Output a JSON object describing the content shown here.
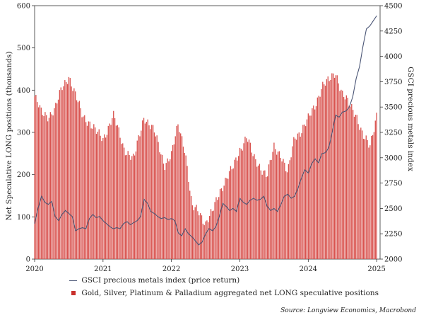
{
  "chart_data": {
    "type": "bar+line",
    "title": "",
    "xlabel": "",
    "x_ticks": [
      "2020",
      "2021",
      "2022",
      "2023",
      "2024",
      "2025"
    ],
    "x_range": [
      2020.0,
      2025.05
    ],
    "y_left": {
      "label": "Net Speculative LONG positions (thousands)",
      "ticks": [
        "0",
        "100",
        "200",
        "300",
        "400",
        "500",
        "600"
      ],
      "range": [
        0,
        600
      ]
    },
    "y_right": {
      "label": "GSCI precious metals index",
      "ticks": [
        "2000",
        "2250",
        "2500",
        "2750",
        "3000",
        "3250",
        "3500",
        "3750",
        "4000",
        "4250",
        "4500"
      ],
      "range": [
        2000,
        4500
      ]
    },
    "bars": {
      "name": "Gold, Silver, Platinum & Palladium aggregated net LONG speculative positions",
      "color": "#d9534f",
      "axis": "left",
      "x": [
        2020.0,
        2020.1,
        2020.2,
        2020.3,
        2020.4,
        2020.5,
        2020.6,
        2020.7,
        2020.8,
        2020.9,
        2021.0,
        2021.15,
        2021.3,
        2021.45,
        2021.6,
        2021.75,
        2021.9,
        2022.0,
        2022.1,
        2022.2,
        2022.3,
        2022.4,
        2022.5,
        2022.6,
        2022.7,
        2022.8,
        2022.9,
        2023.0,
        2023.1,
        2023.2,
        2023.3,
        2023.4,
        2023.5,
        2023.6,
        2023.7,
        2023.8,
        2023.9,
        2024.0,
        2024.1,
        2024.2,
        2024.3,
        2024.4,
        2024.5,
        2024.6,
        2024.7,
        2024.8,
        2024.9,
        2025.0
      ],
      "values": [
        385,
        345,
        340,
        355,
        405,
        435,
        385,
        340,
        325,
        300,
        285,
        340,
        265,
        235,
        340,
        300,
        225,
        245,
        320,
        260,
        120,
        115,
        85,
        110,
        160,
        190,
        215,
        260,
        290,
        240,
        220,
        195,
        265,
        250,
        200,
        290,
        305,
        330,
        365,
        410,
        420,
        445,
        390,
        365,
        345,
        290,
        265,
        345
      ]
    },
    "line": {
      "name": "GSCI precious metals index (price return)",
      "color": "#4a5575",
      "axis": "right",
      "x": [
        2020.0,
        2020.05,
        2020.1,
        2020.15,
        2020.2,
        2020.25,
        2020.3,
        2020.35,
        2020.4,
        2020.45,
        2020.5,
        2020.55,
        2020.6,
        2020.65,
        2020.7,
        2020.75,
        2020.8,
        2020.85,
        2020.9,
        2020.95,
        2021.0,
        2021.05,
        2021.1,
        2021.15,
        2021.2,
        2021.25,
        2021.3,
        2021.35,
        2021.4,
        2021.45,
        2021.5,
        2021.55,
        2021.6,
        2021.65,
        2021.7,
        2021.75,
        2021.8,
        2021.85,
        2021.9,
        2021.95,
        2022.0,
        2022.05,
        2022.1,
        2022.15,
        2022.2,
        2022.25,
        2022.3,
        2022.35,
        2022.4,
        2022.45,
        2022.5,
        2022.55,
        2022.6,
        2022.65,
        2022.7,
        2022.75,
        2022.8,
        2022.85,
        2022.9,
        2022.95,
        2023.0,
        2023.05,
        2023.1,
        2023.15,
        2023.2,
        2023.25,
        2023.3,
        2023.35,
        2023.4,
        2023.45,
        2023.5,
        2023.55,
        2023.6,
        2023.65,
        2023.7,
        2023.75,
        2023.8,
        2023.85,
        2023.9,
        2023.95,
        2024.0,
        2024.05,
        2024.1,
        2024.15,
        2024.2,
        2024.25,
        2024.3,
        2024.35,
        2024.4,
        2024.45,
        2024.5,
        2024.55,
        2024.6,
        2024.65,
        2024.7,
        2024.75,
        2024.8,
        2024.85,
        2024.9,
        2024.95,
        2025.0
      ],
      "values": [
        2350,
        2500,
        2620,
        2560,
        2540,
        2570,
        2420,
        2380,
        2440,
        2480,
        2450,
        2420,
        2280,
        2300,
        2310,
        2300,
        2400,
        2440,
        2410,
        2420,
        2380,
        2350,
        2320,
        2300,
        2310,
        2300,
        2350,
        2370,
        2340,
        2360,
        2380,
        2420,
        2590,
        2550,
        2470,
        2450,
        2420,
        2400,
        2410,
        2390,
        2400,
        2380,
        2260,
        2230,
        2300,
        2250,
        2220,
        2180,
        2140,
        2170,
        2250,
        2300,
        2280,
        2320,
        2420,
        2550,
        2520,
        2480,
        2500,
        2470,
        2600,
        2560,
        2540,
        2580,
        2600,
        2580,
        2590,
        2620,
        2520,
        2480,
        2500,
        2470,
        2540,
        2620,
        2640,
        2600,
        2620,
        2700,
        2800,
        2880,
        2850,
        2940,
        2990,
        2950,
        3040,
        3050,
        3100,
        3250,
        3420,
        3400,
        3450,
        3460,
        3500,
        3600,
        3780,
        3900,
        4100,
        4270,
        4300,
        4350,
        4400
      ]
    },
    "legend_position": "bottom"
  },
  "legend": {
    "line_label": "GSCI precious metals index (price return)",
    "bar_label": "Gold, Silver, Platinum & Palladium aggregated net LONG speculative positions"
  },
  "source": "Source: Longview Economics, Macrobond"
}
